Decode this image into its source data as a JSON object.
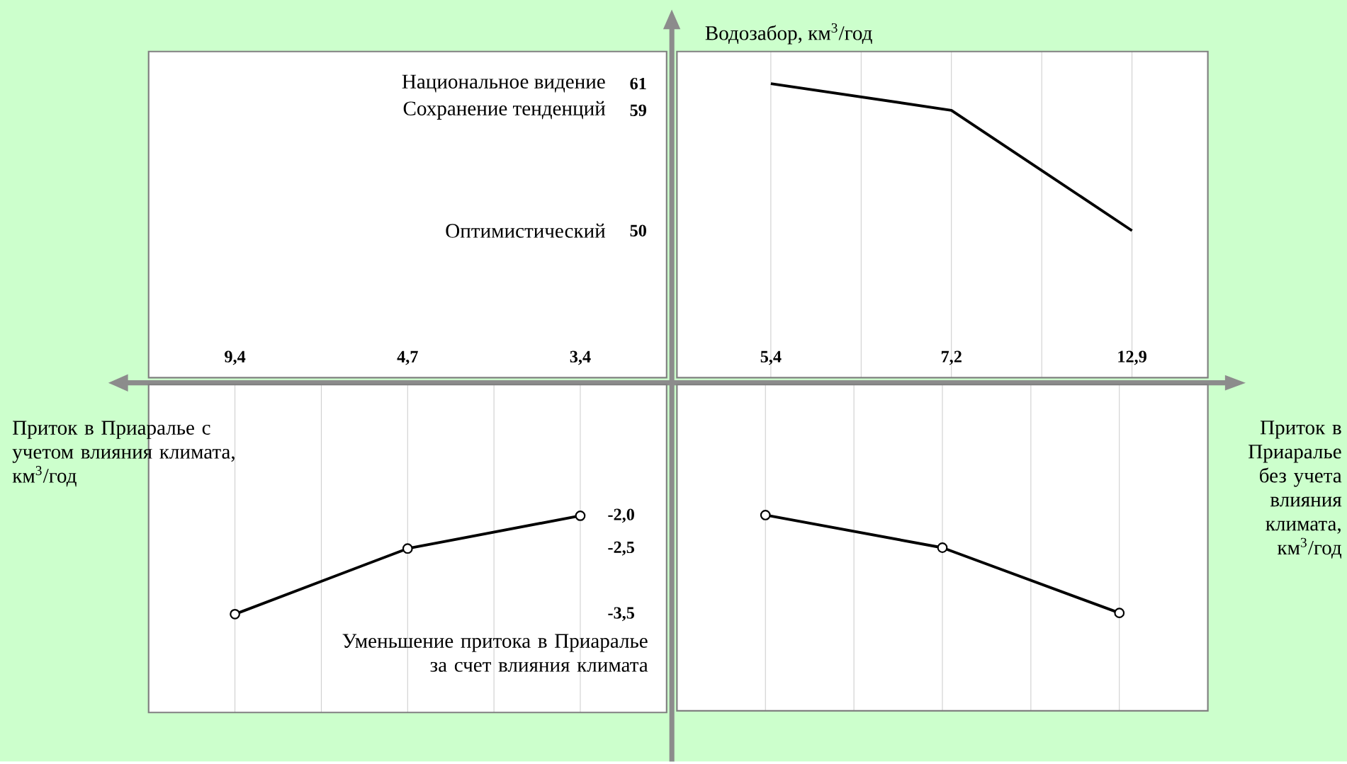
{
  "chart_data": [
    {
      "type": "other",
      "annotations": [
        "Национальное видение",
        "Сохранение тенденций",
        "Оптимистический"
      ]
    },
    {
      "type": "line",
      "categories": [
        "5,4",
        "7,2",
        "12,9"
      ],
      "values": [
        61,
        59,
        50
      ],
      "color": "#000000",
      "ylabel": "Водозабор, км$^{3}$/год",
      "ylim": [
        39,
        63.4
      ],
      "yticks": [
        50,
        59,
        61
      ],
      "grid": "x",
      "marker": "none"
    },
    {
      "type": "line",
      "categories": [
        "9,4",
        "4,7",
        "3,4"
      ],
      "values": [
        -3.5,
        -2.5,
        -2.0
      ],
      "color": "#000000",
      "xlabel": "Приток в Приаралье с учетом влияния климата, км$^{3}$/год",
      "ylabel": "Уменьшение притока в Приаралье за счет влияния климата",
      "ylim": [
        -5,
        0
      ],
      "yticks": [
        {
          "value": -3.5,
          "label": "-3,5"
        },
        {
          "value": -2.5,
          "label": "-2,5"
        },
        {
          "value": -2.0,
          "label": "-2,0"
        }
      ],
      "grid": "x",
      "marker": "circle"
    },
    {
      "type": "line",
      "categories": [
        "5,4",
        "7,2",
        "12,9"
      ],
      "values": [
        -2.0,
        -2.5,
        -3.5
      ],
      "color": "#000000",
      "xlabel": "Приток в Приаралье без учета влияния климата, км$^{3}$/год",
      "ylim": [
        -5,
        0
      ],
      "yticks": [
        -3.5,
        -2.5,
        -2.0
      ],
      "grid": "x",
      "tick_labels": false,
      "marker": "circle"
    }
  ]
}
